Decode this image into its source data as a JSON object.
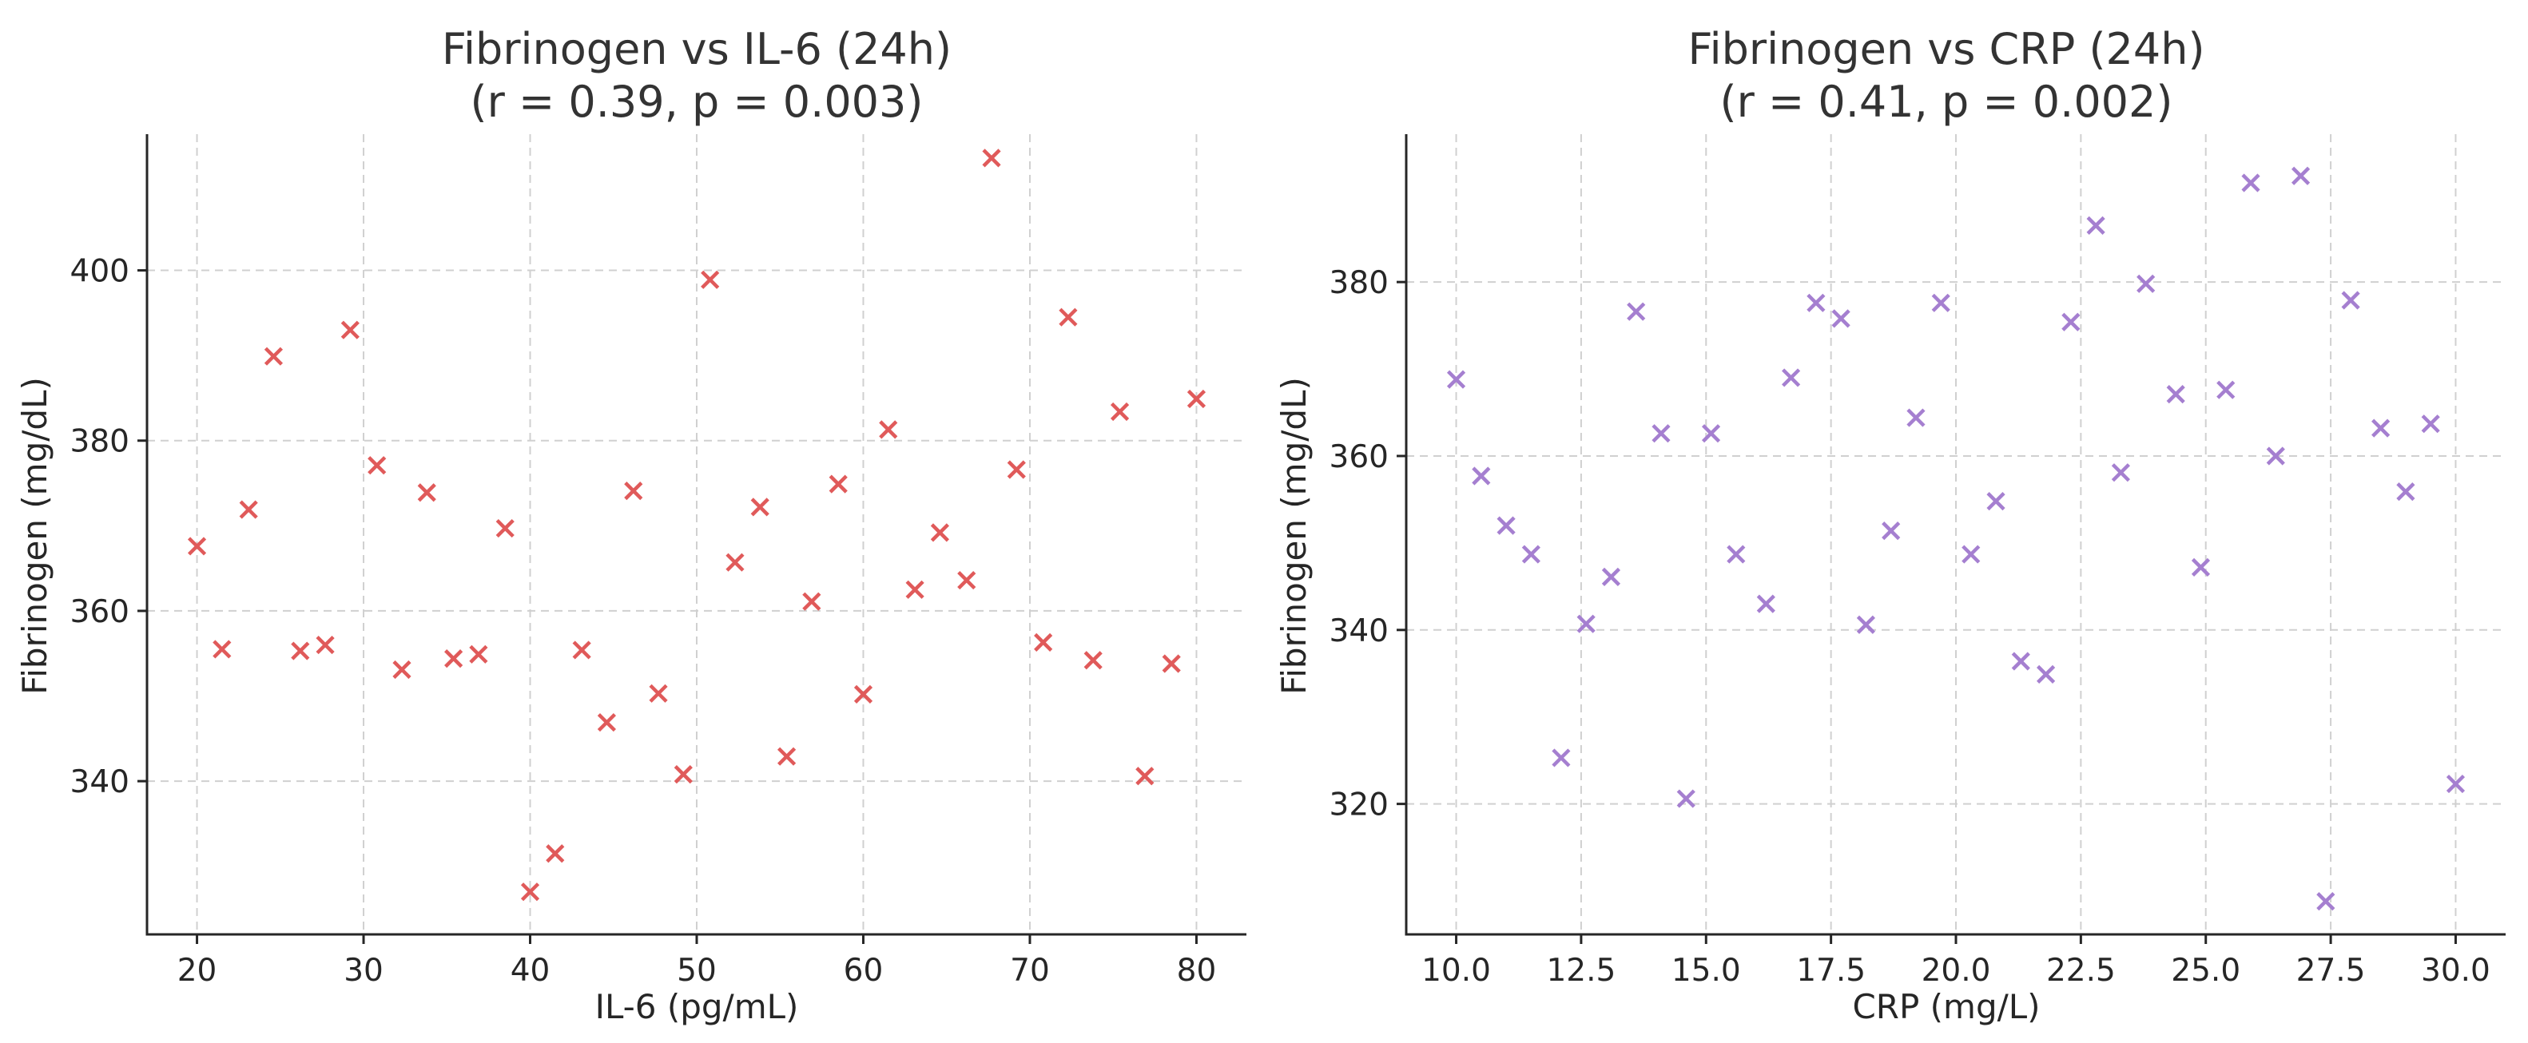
{
  "figure": {
    "name": "fibrinogen-correlation-figure"
  },
  "chart_data": [
    {
      "type": "scatter",
      "title": "Fibrinogen vs IL-6 (24h)",
      "subtitle": "(r = 0.39, p = 0.003)",
      "xlabel": "IL-6 (pg/mL)",
      "ylabel": "Fibrinogen (mg/dL)",
      "xlim": [
        17,
        83
      ],
      "ylim": [
        322,
        416
      ],
      "xticks": [
        20,
        30,
        40,
        50,
        60,
        70,
        80
      ],
      "yticks": [
        340,
        360,
        380,
        400
      ],
      "grid": true,
      "marker": "x",
      "color": "#e05a5a",
      "series": [
        {
          "name": "IL-6",
          "x": [
            20.0,
            21.5,
            23.1,
            24.6,
            26.2,
            27.7,
            29.2,
            30.8,
            32.3,
            33.8,
            35.4,
            36.9,
            38.5,
            40.0,
            41.5,
            43.1,
            44.6,
            46.2,
            47.7,
            49.2,
            50.8,
            52.3,
            53.8,
            55.4,
            56.9,
            58.5,
            60.0,
            61.5,
            63.1,
            64.6,
            66.2,
            67.7,
            69.2,
            70.8,
            72.3,
            73.8,
            75.4,
            76.9,
            78.5,
            80.0
          ],
          "y": [
            367.6,
            355.5,
            371.9,
            389.9,
            355.3,
            356.0,
            393.0,
            377.1,
            353.1,
            373.9,
            354.4,
            354.9,
            369.7,
            327.0,
            331.5,
            355.4,
            346.9,
            374.1,
            350.3,
            340.8,
            398.9,
            365.7,
            372.2,
            342.9,
            361.1,
            374.9,
            350.2,
            381.3,
            362.5,
            369.2,
            363.6,
            413.2,
            376.6,
            356.3,
            394.5,
            354.2,
            383.4,
            340.6,
            353.8,
            384.9
          ]
        }
      ]
    },
    {
      "type": "scatter",
      "title": "Fibrinogen vs CRP (24h)",
      "subtitle": "(r = 0.41, p = 0.002)",
      "xlabel": "CRP (mg/L)",
      "ylabel": "Fibrinogen (mg/dL)",
      "xlim": [
        9.0,
        31.0
      ],
      "ylim": [
        305,
        397
      ],
      "xticks": [
        10.0,
        12.5,
        15.0,
        17.5,
        20.0,
        22.5,
        25.0,
        27.5,
        30.0
      ],
      "yticks": [
        320,
        340,
        360,
        380
      ],
      "grid": true,
      "marker": "x",
      "color": "#a57fd0",
      "series": [
        {
          "name": "CRP",
          "x": [
            10.0,
            10.5,
            11.0,
            11.5,
            12.1,
            12.6,
            13.1,
            13.6,
            14.1,
            14.6,
            15.1,
            15.6,
            16.2,
            16.7,
            17.2,
            17.7,
            18.2,
            18.7,
            19.2,
            19.7,
            20.3,
            20.8,
            21.3,
            21.8,
            22.3,
            22.8,
            23.3,
            23.8,
            24.4,
            24.9,
            25.4,
            25.9,
            26.4,
            26.9,
            27.4,
            27.9,
            28.5,
            29.0,
            29.5,
            30.0
          ],
          "y": [
            368.8,
            357.7,
            352.0,
            348.7,
            325.3,
            340.7,
            346.1,
            376.6,
            362.6,
            320.6,
            362.6,
            348.7,
            343.0,
            369.0,
            377.6,
            375.8,
            340.6,
            351.4,
            364.4,
            377.6,
            348.7,
            354.8,
            336.4,
            334.9,
            375.4,
            386.5,
            358.1,
            379.8,
            367.1,
            347.2,
            367.6,
            391.4,
            360.0,
            392.2,
            308.8,
            377.9,
            363.2,
            355.9,
            363.7,
            322.3
          ]
        }
      ]
    }
  ]
}
